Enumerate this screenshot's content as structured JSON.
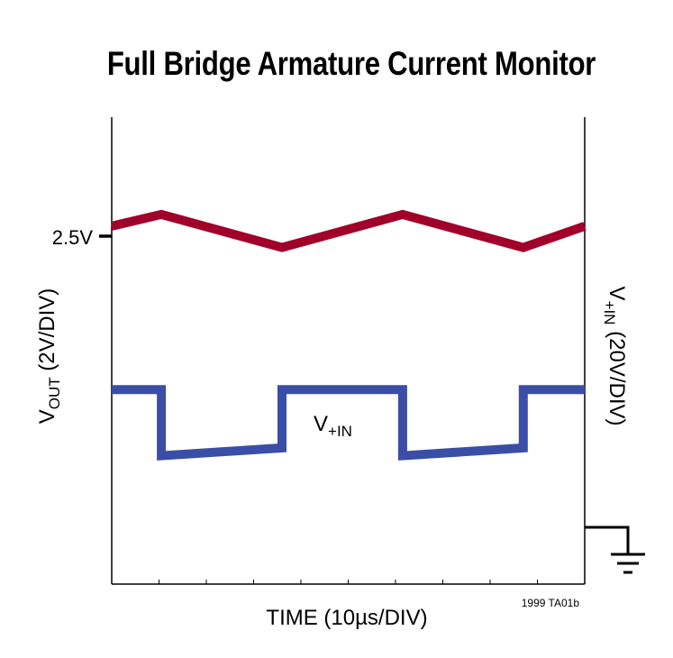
{
  "title": "Full Bridge Armature Current Monitor",
  "figure_id": "1999 TA01b",
  "chart_data": {
    "type": "line",
    "title": "Full Bridge Armature Current Monitor",
    "xlabel": "TIME (10µs/DIV)",
    "x_divisions": 10,
    "xlim": [
      0,
      10
    ],
    "grid": false,
    "ref_marker": "2.5V",
    "left_axis": {
      "main": "V",
      "sub": "OUT",
      "rest": " (2V/DIV)"
    },
    "right_axis": {
      "main": "V",
      "sub": "+IN",
      "rest": " (20V/DIV)"
    },
    "ground_symbol": "ground-icon",
    "series": [
      {
        "name_main": "V",
        "name_sub": "+IN",
        "color": "#3a4ea8",
        "x": [
          0,
          1.05,
          1.05,
          3.6,
          3.6,
          6.15,
          6.15,
          8.7,
          8.7,
          10
        ],
        "y": [
          5.0,
          5.0,
          3.3,
          3.5,
          5.0,
          5.0,
          3.3,
          3.5,
          5.0,
          5.0
        ]
      },
      {
        "color": "#a0002a",
        "x": [
          0,
          1.05,
          3.6,
          6.15,
          8.7,
          10
        ],
        "y": [
          9.2,
          9.5,
          8.65,
          9.5,
          8.65,
          9.2
        ]
      }
    ]
  }
}
